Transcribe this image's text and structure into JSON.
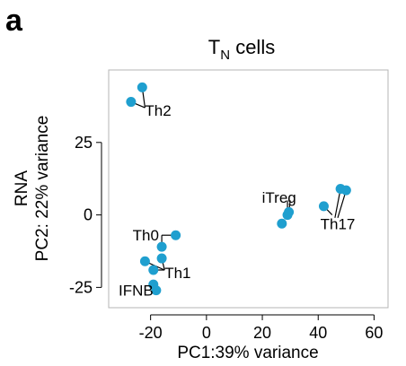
{
  "panel_label": "a",
  "chart_data": {
    "type": "scatter",
    "title_main": "T",
    "title_sub": "N",
    "title_rest": " cells",
    "ylabel_line1": "RNA",
    "ylabel_line2": "PC2: 22% variance",
    "xlabel": "PC1:39% variance",
    "xlim": [
      -35,
      65
    ],
    "ylim": [
      -32,
      50
    ],
    "xticks": [
      -20,
      0,
      20,
      40,
      60
    ],
    "yticks": [
      -25,
      0,
      25
    ],
    "grid": false,
    "marker_color": "#1f9fcf",
    "points": [
      {
        "x": -27,
        "y": 39
      },
      {
        "x": -23,
        "y": 44
      },
      {
        "x": 27,
        "y": -3
      },
      {
        "x": 29,
        "y": 0
      },
      {
        "x": 29.5,
        "y": 1
      },
      {
        "x": 42,
        "y": 3
      },
      {
        "x": 48,
        "y": 9
      },
      {
        "x": 50,
        "y": 8.5
      },
      {
        "x": -11,
        "y": -7
      },
      {
        "x": -16,
        "y": -11
      },
      {
        "x": -16,
        "y": -15
      },
      {
        "x": -22,
        "y": -16
      },
      {
        "x": -19,
        "y": -19
      },
      {
        "x": -19,
        "y": -24
      },
      {
        "x": -18,
        "y": -26
      }
    ],
    "annotations": [
      {
        "label": "Th2",
        "tx": -22,
        "ty": 36,
        "anchor": "start",
        "lines": [
          [
            -27,
            39,
            -22,
            37
          ],
          [
            -23,
            44,
            -22,
            37
          ]
        ]
      },
      {
        "label": "iTreg",
        "tx": 26,
        "ty": 6,
        "anchor": "middle",
        "lines": [
          [
            29,
            5,
            29,
            0
          ],
          [
            30,
            5,
            29.5,
            1
          ]
        ]
      },
      {
        "label": "Th17",
        "tx": 47,
        "ty": -3,
        "anchor": "middle",
        "lines": [
          [
            42,
            3,
            45,
            0
          ],
          [
            48,
            9,
            46,
            -1
          ],
          [
            50,
            8.5,
            47,
            -1
          ]
        ]
      },
      {
        "label": "Th0",
        "tx": -17,
        "ty": -7,
        "anchor": "end",
        "lines": [
          [
            -11,
            -7,
            -16,
            -7
          ],
          [
            -16,
            -11,
            -16,
            -7
          ]
        ]
      },
      {
        "label": "Th1",
        "tx": -15,
        "ty": -20,
        "anchor": "start",
        "lines": [
          [
            -22,
            -16,
            -15,
            -19
          ],
          [
            -16,
            -15,
            -15,
            -19
          ],
          [
            -19,
            -19,
            -15,
            -19
          ]
        ]
      },
      {
        "label": "IFNB",
        "tx": -19,
        "ty": -26,
        "anchor": "end",
        "lines": [
          [
            -19,
            -24,
            -19,
            -26
          ]
        ]
      }
    ]
  }
}
